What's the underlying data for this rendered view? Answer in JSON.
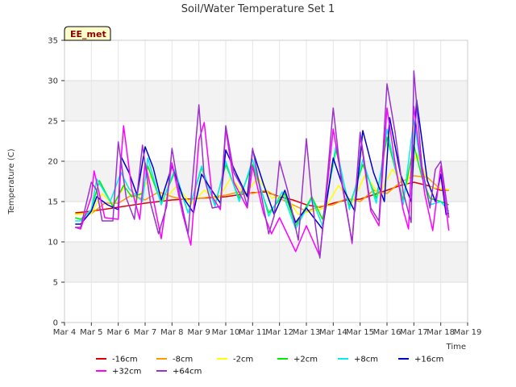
{
  "chart_data": {
    "type": "line",
    "title": "Soil/Water Temperature Set 1",
    "xlabel": "Time",
    "ylabel": "Temperature (C)",
    "badge": "EE_met",
    "xlim": [
      4,
      19
    ],
    "ylim": [
      0,
      35
    ],
    "yticks": [
      0,
      5,
      10,
      15,
      20,
      25,
      30,
      35
    ],
    "xticks": [
      {
        "value": 4,
        "label": "Mar 4"
      },
      {
        "value": 5,
        "label": "Mar 5"
      },
      {
        "value": 6,
        "label": "Mar 6"
      },
      {
        "value": 7,
        "label": "Mar 7"
      },
      {
        "value": 8,
        "label": "Mar 8"
      },
      {
        "value": 9,
        "label": "Mar 9"
      },
      {
        "value": 10,
        "label": "Mar 10"
      },
      {
        "value": 11,
        "label": "Mar 11"
      },
      {
        "value": 12,
        "label": "Mar 12"
      },
      {
        "value": 13,
        "label": "Mar 13"
      },
      {
        "value": 14,
        "label": "Mar 14"
      },
      {
        "value": 15,
        "label": "Mar 15"
      },
      {
        "value": 16,
        "label": "Mar 16"
      },
      {
        "value": 17,
        "label": "Mar 17"
      },
      {
        "value": 18,
        "label": "Mar 18"
      },
      {
        "value": 19,
        "label": "Mar 19"
      }
    ],
    "legend_position": "bottom",
    "grid": true,
    "series": [
      {
        "name": "-16cm",
        "color": "#dd0000",
        "points": [
          [
            4.4,
            13.6
          ],
          [
            5,
            13.8
          ],
          [
            6,
            14.3
          ],
          [
            7,
            14.8
          ],
          [
            8,
            15.2
          ],
          [
            9,
            15.4
          ],
          [
            10,
            15.6
          ],
          [
            11,
            16.1
          ],
          [
            11.5,
            16.2
          ],
          [
            12,
            15.6
          ],
          [
            12.5,
            15.2
          ],
          [
            13,
            14.6
          ],
          [
            13.5,
            14.3
          ],
          [
            14,
            14.8
          ],
          [
            14.5,
            15.2
          ],
          [
            15,
            15.3
          ],
          [
            16,
            16.4
          ],
          [
            16.5,
            17.0
          ],
          [
            17,
            17.4
          ],
          [
            17.5,
            17.0
          ],
          [
            18,
            16.4
          ],
          [
            18.3,
            16.4
          ]
        ]
      },
      {
        "name": "-8cm",
        "color": "#ff9900",
        "points": [
          [
            4.4,
            13.5
          ],
          [
            5,
            13.5
          ],
          [
            5.5,
            14.8
          ],
          [
            6,
            14.8
          ],
          [
            6.5,
            15.8
          ],
          [
            7,
            15.2
          ],
          [
            7.5,
            16.2
          ],
          [
            8,
            15.6
          ],
          [
            8.5,
            15.2
          ],
          [
            9,
            15.4
          ],
          [
            9.5,
            15.6
          ],
          [
            10,
            15.8
          ],
          [
            10.5,
            16.2
          ],
          [
            11,
            16.0
          ],
          [
            11.5,
            16.4
          ],
          [
            12,
            15.4
          ],
          [
            12.5,
            14.6
          ],
          [
            13,
            13.8
          ],
          [
            13.5,
            14.4
          ],
          [
            14,
            14.6
          ],
          [
            14.5,
            15.4
          ],
          [
            15,
            15.0
          ],
          [
            15.5,
            16.4
          ],
          [
            16,
            16.0
          ],
          [
            16.5,
            17.4
          ],
          [
            17,
            18.2
          ],
          [
            17.5,
            18.0
          ],
          [
            18,
            16.5
          ],
          [
            18.3,
            16.4
          ]
        ]
      },
      {
        "name": "-2cm",
        "color": "#ffff00",
        "points": [
          [
            4.4,
            13.4
          ],
          [
            5,
            13.5
          ],
          [
            5.4,
            16.0
          ],
          [
            5.8,
            14.6
          ],
          [
            6.3,
            17.2
          ],
          [
            6.7,
            15.2
          ],
          [
            7.2,
            18.2
          ],
          [
            7.7,
            15.2
          ],
          [
            8.2,
            17.0
          ],
          [
            8.7,
            14.6
          ],
          [
            9.2,
            16.4
          ],
          [
            9.7,
            15.2
          ],
          [
            10.2,
            18.0
          ],
          [
            10.7,
            15.8
          ],
          [
            11.2,
            18.0
          ],
          [
            11.7,
            15.4
          ],
          [
            12.2,
            15.8
          ],
          [
            12.7,
            13.4
          ],
          [
            13.2,
            13.8
          ],
          [
            13.7,
            14.2
          ],
          [
            14.2,
            17.0
          ],
          [
            14.7,
            14.8
          ],
          [
            15.2,
            18.4
          ],
          [
            15.7,
            15.8
          ],
          [
            16.2,
            19.0
          ],
          [
            16.7,
            16.8
          ],
          [
            17.1,
            21.0
          ],
          [
            17.6,
            16.8
          ],
          [
            18.0,
            16.6
          ],
          [
            18.3,
            16.5
          ]
        ]
      },
      {
        "name": "+2cm",
        "color": "#00ee00",
        "points": [
          [
            4.4,
            13.0
          ],
          [
            4.6,
            12.8
          ],
          [
            5,
            14.0
          ],
          [
            5.3,
            17.6
          ],
          [
            5.8,
            14.4
          ],
          [
            6.2,
            17.0
          ],
          [
            6.5,
            15.6
          ],
          [
            6.9,
            16.0
          ],
          [
            7.1,
            19.4
          ],
          [
            7.6,
            14.8
          ],
          [
            8.1,
            18.6
          ],
          [
            8.6,
            13.6
          ],
          [
            9.1,
            19.2
          ],
          [
            9.6,
            14.6
          ],
          [
            10.0,
            19.6
          ],
          [
            10.5,
            15.4
          ],
          [
            11.0,
            19.6
          ],
          [
            11.6,
            13.6
          ],
          [
            12.2,
            16.0
          ],
          [
            12.6,
            12.0
          ],
          [
            13.2,
            15.6
          ],
          [
            13.6,
            12.8
          ],
          [
            14.1,
            21.4
          ],
          [
            14.6,
            14.4
          ],
          [
            15.1,
            19.6
          ],
          [
            15.6,
            15.4
          ],
          [
            16.0,
            23.0
          ],
          [
            16.6,
            15.2
          ],
          [
            17.0,
            22.0
          ],
          [
            17.3,
            18.0
          ],
          [
            17.6,
            15.4
          ],
          [
            18.0,
            15.0
          ],
          [
            18.3,
            14.6
          ]
        ]
      },
      {
        "name": "+8cm",
        "color": "#00eeee",
        "points": [
          [
            4.4,
            12.6
          ],
          [
            4.6,
            12.6
          ],
          [
            5,
            14.0
          ],
          [
            5.2,
            17.8
          ],
          [
            5.7,
            15.0
          ],
          [
            6.1,
            18.6
          ],
          [
            6.4,
            16.6
          ],
          [
            6.9,
            15.0
          ],
          [
            7.1,
            20.4
          ],
          [
            7.6,
            14.6
          ],
          [
            8.1,
            19.0
          ],
          [
            8.6,
            13.6
          ],
          [
            9.1,
            19.4
          ],
          [
            9.6,
            14.4
          ],
          [
            10.0,
            20.0
          ],
          [
            10.5,
            15.0
          ],
          [
            11.0,
            20.2
          ],
          [
            11.6,
            13.2
          ],
          [
            12.1,
            16.2
          ],
          [
            12.6,
            11.6
          ],
          [
            13.2,
            15.4
          ],
          [
            13.6,
            12.0
          ],
          [
            14.1,
            22.0
          ],
          [
            14.6,
            14.0
          ],
          [
            15.1,
            20.2
          ],
          [
            15.6,
            14.8
          ],
          [
            16.0,
            24.0
          ],
          [
            16.6,
            14.6
          ],
          [
            17.0,
            25.2
          ],
          [
            17.3,
            18.4
          ],
          [
            17.6,
            14.6
          ],
          [
            18.0,
            15.0
          ],
          [
            18.3,
            13.8
          ]
        ]
      },
      {
        "name": "+16cm",
        "color": "#0000cc",
        "points": [
          [
            4.4,
            12.2
          ],
          [
            4.6,
            12.2
          ],
          [
            5,
            13.8
          ],
          [
            5.2,
            15.6
          ],
          [
            5.6,
            14.6
          ],
          [
            6,
            14.0
          ],
          [
            6.1,
            20.6
          ],
          [
            6.4,
            18.6
          ],
          [
            6.7,
            15.8
          ],
          [
            7,
            21.8
          ],
          [
            7.3,
            19.2
          ],
          [
            7.6,
            15.2
          ],
          [
            8,
            19.4
          ],
          [
            8.4,
            15.6
          ],
          [
            8.8,
            13.6
          ],
          [
            9.1,
            18.4
          ],
          [
            9.4,
            16.8
          ],
          [
            9.8,
            14.8
          ],
          [
            10,
            21.4
          ],
          [
            10.4,
            18.4
          ],
          [
            10.8,
            15.6
          ],
          [
            11.0,
            21.4
          ],
          [
            11.4,
            17.2
          ],
          [
            11.8,
            13.4
          ],
          [
            12.2,
            16.4
          ],
          [
            12.6,
            12.4
          ],
          [
            13.0,
            14.2
          ],
          [
            13.6,
            11.6
          ],
          [
            14.0,
            20.4
          ],
          [
            14.4,
            16.4
          ],
          [
            14.8,
            13.8
          ],
          [
            15.1,
            23.8
          ],
          [
            15.5,
            18.6
          ],
          [
            15.9,
            15.0
          ],
          [
            16.1,
            25.4
          ],
          [
            16.5,
            18.4
          ],
          [
            16.9,
            15.0
          ],
          [
            17.1,
            27.6
          ],
          [
            17.5,
            17.6
          ],
          [
            17.8,
            15.0
          ],
          [
            18.0,
            18.4
          ],
          [
            18.2,
            13.4
          ],
          [
            18.3,
            13.6
          ]
        ]
      },
      {
        "name": "+32cm",
        "color": "#ff00ff",
        "points": [
          [
            4.4,
            11.8
          ],
          [
            4.6,
            11.6
          ],
          [
            5,
            15.6
          ],
          [
            5.1,
            18.8
          ],
          [
            5.5,
            13.0
          ],
          [
            6,
            12.8
          ],
          [
            6.1,
            20.0
          ],
          [
            6.2,
            24.4
          ],
          [
            6.5,
            16.6
          ],
          [
            6.8,
            12.8
          ],
          [
            7,
            19.8
          ],
          [
            7.3,
            15.4
          ],
          [
            7.6,
            10.4
          ],
          [
            8,
            19.8
          ],
          [
            8.4,
            13.4
          ],
          [
            8.7,
            9.6
          ],
          [
            9,
            22.6
          ],
          [
            9.2,
            24.8
          ],
          [
            9.5,
            15.6
          ],
          [
            9.8,
            14.0
          ],
          [
            10,
            24.0
          ],
          [
            10.3,
            17.4
          ],
          [
            10.8,
            14.2
          ],
          [
            11,
            19.4
          ],
          [
            11.4,
            13.6
          ],
          [
            11.7,
            11.0
          ],
          [
            12,
            13.0
          ],
          [
            12.6,
            8.8
          ],
          [
            13,
            12.0
          ],
          [
            13.5,
            8.2
          ],
          [
            14,
            24.0
          ],
          [
            14.5,
            14.0
          ],
          [
            14.7,
            9.8
          ],
          [
            15,
            23.2
          ],
          [
            15.4,
            13.8
          ],
          [
            15.7,
            12.0
          ],
          [
            16,
            26.6
          ],
          [
            16.3,
            19.8
          ],
          [
            16.6,
            14.0
          ],
          [
            16.8,
            11.6
          ],
          [
            17,
            26.8
          ],
          [
            17.4,
            16.0
          ],
          [
            17.7,
            11.4
          ],
          [
            18,
            19.4
          ],
          [
            18.3,
            11.4
          ]
        ]
      },
      {
        "name": "+64cm",
        "color": "#9933cc",
        "points": [
          [
            4.4,
            11.8
          ],
          [
            4.6,
            11.8
          ],
          [
            5,
            17.4
          ],
          [
            5.2,
            16.4
          ],
          [
            5.4,
            12.6
          ],
          [
            5.8,
            12.6
          ],
          [
            6,
            22.4
          ],
          [
            6.3,
            15.4
          ],
          [
            6.6,
            12.8
          ],
          [
            6.9,
            22.0
          ],
          [
            7.2,
            14.8
          ],
          [
            7.5,
            11.0
          ],
          [
            7.8,
            14.4
          ],
          [
            8,
            21.6
          ],
          [
            8.3,
            15.6
          ],
          [
            8.6,
            11.0
          ],
          [
            9,
            27.0
          ],
          [
            9.2,
            18.0
          ],
          [
            9.5,
            14.2
          ],
          [
            9.8,
            14.4
          ],
          [
            10,
            24.4
          ],
          [
            10.3,
            18.6
          ],
          [
            10.6,
            16.8
          ],
          [
            10.8,
            14.4
          ],
          [
            11,
            21.6
          ],
          [
            11.3,
            16.2
          ],
          [
            11.6,
            11.0
          ],
          [
            11.8,
            13.2
          ],
          [
            12,
            20.0
          ],
          [
            12.3,
            16.4
          ],
          [
            12.7,
            10.2
          ],
          [
            13,
            22.8
          ],
          [
            13.2,
            15.4
          ],
          [
            13.5,
            8.0
          ],
          [
            13.8,
            18.8
          ],
          [
            14,
            26.6
          ],
          [
            14.3,
            17.6
          ],
          [
            14.7,
            10.0
          ],
          [
            15,
            23.6
          ],
          [
            15.4,
            14.2
          ],
          [
            15.7,
            12.6
          ],
          [
            16,
            29.6
          ],
          [
            16.3,
            23.6
          ],
          [
            16.6,
            16.2
          ],
          [
            16.9,
            12.4
          ],
          [
            17,
            31.2
          ],
          [
            17.3,
            19.4
          ],
          [
            17.6,
            14.2
          ],
          [
            17.8,
            19.0
          ],
          [
            18,
            20.0
          ],
          [
            18.3,
            13.0
          ]
        ]
      }
    ]
  }
}
